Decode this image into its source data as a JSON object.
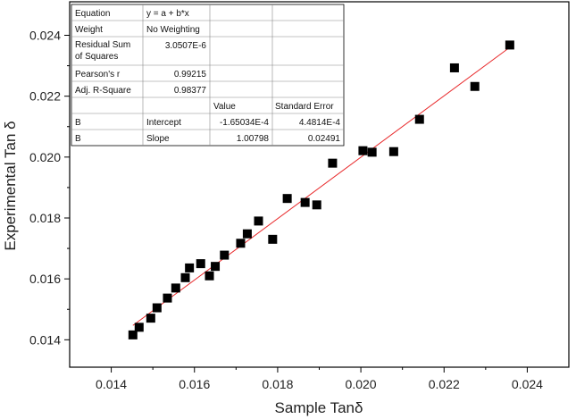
{
  "chart_data": {
    "type": "scatter",
    "xlabel": "Sample Tanδ",
    "ylabel": "Experimental Tan δ",
    "xlim": [
      0.013,
      0.025
    ],
    "ylim": [
      0.0131,
      0.0251
    ],
    "xticks": [
      "0.014",
      "0.016",
      "0.018",
      "0.020",
      "0.022",
      "0.024"
    ],
    "xtick_values": [
      0.014,
      0.016,
      0.018,
      0.02,
      0.022,
      0.024
    ],
    "yticks": [
      "0.014",
      "0.016",
      "0.018",
      "0.020",
      "0.022",
      "0.024"
    ],
    "ytick_values": [
      0.014,
      0.016,
      0.018,
      0.02,
      0.022,
      0.024
    ],
    "points": [
      [
        0.01452,
        0.01416
      ],
      [
        0.01467,
        0.01441
      ],
      [
        0.01495,
        0.01471
      ],
      [
        0.0151,
        0.01505
      ],
      [
        0.01535,
        0.01537
      ],
      [
        0.01555,
        0.0157
      ],
      [
        0.01578,
        0.01604
      ],
      [
        0.01588,
        0.01636
      ],
      [
        0.01615,
        0.0165
      ],
      [
        0.01636,
        0.0161
      ],
      [
        0.0165,
        0.01641
      ],
      [
        0.01672,
        0.01678
      ],
      [
        0.01711,
        0.01717
      ],
      [
        0.01727,
        0.01748
      ],
      [
        0.01754,
        0.0179
      ],
      [
        0.01788,
        0.0173
      ],
      [
        0.01823,
        0.01864
      ],
      [
        0.01866,
        0.01851
      ],
      [
        0.01894,
        0.01843
      ],
      [
        0.01932,
        0.0198
      ],
      [
        0.02005,
        0.02021
      ],
      [
        0.02027,
        0.02016
      ],
      [
        0.02079,
        0.02018
      ],
      [
        0.02141,
        0.02124
      ],
      [
        0.02225,
        0.02293
      ],
      [
        0.02274,
        0.02232
      ],
      [
        0.02358,
        0.02368
      ]
    ],
    "fit": {
      "intercept": -0.000165034,
      "slope": 1.00798,
      "x_range": [
        0.01452,
        0.02358
      ]
    },
    "colors": {
      "points": "#000000",
      "fit_line": "#e8282a"
    },
    "grid": false
  },
  "fit_table": {
    "rows": [
      [
        "Equation",
        "y = a + b*x",
        "",
        ""
      ],
      [
        "Weight",
        "No Weighting",
        "",
        ""
      ],
      [
        "Residual Sum of Squares",
        "3.0507E-6",
        "",
        ""
      ],
      [
        "Pearson's r",
        "0.99215",
        "",
        ""
      ],
      [
        "Adj. R-Square",
        "0.98377",
        "",
        ""
      ],
      [
        "",
        "",
        "Value",
        "Standard Error"
      ],
      [
        "B",
        "Intercept",
        "-1.65034E-4",
        "4.4814E-4"
      ],
      [
        "B",
        "Slope",
        "1.00798",
        "0.02491"
      ]
    ]
  }
}
